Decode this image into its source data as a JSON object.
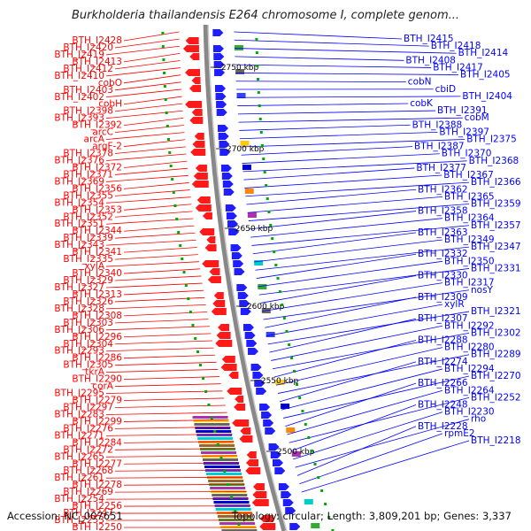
{
  "header": {
    "title": "Burkholderia thailandensis E264 chromosome I, complete genom..."
  },
  "footer": {
    "accession": "Accession: NC_007651",
    "topology": "Topology: circular; Length: 3,809,201 bp; Genes: 3,337"
  },
  "colors": {
    "left_genes": "#ff0000",
    "right_genes": "#0000ff",
    "backbone": "#888888",
    "tick": "#00aa00"
  },
  "ticks": [
    "2750 kbp",
    "2700 kbp",
    "2650 kbp",
    "2600 kbp",
    "2550 kbp",
    "2500 kbp"
  ],
  "left_labels": [
    "BTH_I2428",
    "BTH_I2420",
    "BTH_I2419",
    "BTH_I2413",
    "BTH_I2412",
    "BTH_I2410",
    "cobO",
    "BTH_I2403",
    "BTH_I2402",
    "cobH",
    "BTH_I2398",
    "BTH_I2393",
    "BTH_I2392",
    "arcC",
    "arcA",
    "argF-2",
    "BTH_I2378",
    "BTH_I2376",
    "BTH_I2372",
    "BTH_I2371",
    "BTH_I2369",
    "BTH_I2356",
    "BTH_I2355",
    "BTH_I2354",
    "BTH_I2353",
    "BTH_I2352",
    "BTH_I2351",
    "BTH_I2344",
    "BTH_I2339",
    "BTH_I2343",
    "BTH_I2341",
    "BTH_I2335",
    "xylA",
    "BTH_I2340",
    "BTH_I2329",
    "BTH_I2327",
    "BTH_I2313",
    "BTH_I2326",
    "BTH_I2328",
    "BTH_I2308",
    "BTH_I2303",
    "BTH_I2306",
    "BTH_I2296",
    "BTH_I2304",
    "BTH_I2293",
    "BTH_I2286",
    "BTH_I2305",
    "tkrA",
    "BTH_I2290",
    "corA",
    "BTH_I2295",
    "BTH_I2279",
    "BTH_I2297",
    "BTH_I2283",
    "BTH_I2299",
    "BTH_I2276",
    "BTH_I2271",
    "BTH_I2284",
    "BTH_I2272",
    "BTH_I2265",
    "BTH_I2277",
    "BTH_I2268",
    "BTH_I2261",
    "BTH_I2278",
    "BTH_I2269",
    "BTH_I2254",
    "BTH_I2256",
    "BTH_I2247",
    "BTH_I2253",
    "BTH_I2250"
  ],
  "right_labels": [
    "BTH_I2415",
    "BTH_I2418",
    "BTH_I2414",
    "BTH_I2408",
    "BTH_I2417",
    "BTH_I2405",
    "cobN",
    "cbiD",
    "BTH_I2404",
    "cobK",
    "BTH_I2391",
    "cobM",
    "BTH_I2388",
    "BTH_I2397",
    "BTH_I2375",
    "BTH_I2387",
    "BTH_I2370",
    "BTH_I2368",
    "BTH_I2377",
    "BTH_I2367",
    "BTH_I2366",
    "BTH_I2362",
    "BTH_I2365",
    "BTH_I2359",
    "BTH_I2358",
    "BTH_I2364",
    "BTH_I2357",
    "BTH_I2363",
    "BTH_I2349",
    "BTH_I2347",
    "BTH_I2332",
    "BTH_I2350",
    "BTH_I2331",
    "BTH_I2330",
    "BTH_I2317",
    "nosY",
    "BTH_I2309",
    "xylR",
    "BTH_I2321",
    "BTH_I2307",
    "BTH_I2292",
    "BTH_I2302",
    "BTH_I2288",
    "BTH_I2280",
    "BTH_I2289",
    "BTH_I2274",
    "BTH_I2294",
    "BTH_I2270",
    "BTH_I2266",
    "BTH_I2264",
    "BTH_I2252",
    "BTH_I2248",
    "BTH_I2230",
    "rho",
    "BTH_I2228",
    "rpmE2",
    "BTH_I2218"
  ]
}
